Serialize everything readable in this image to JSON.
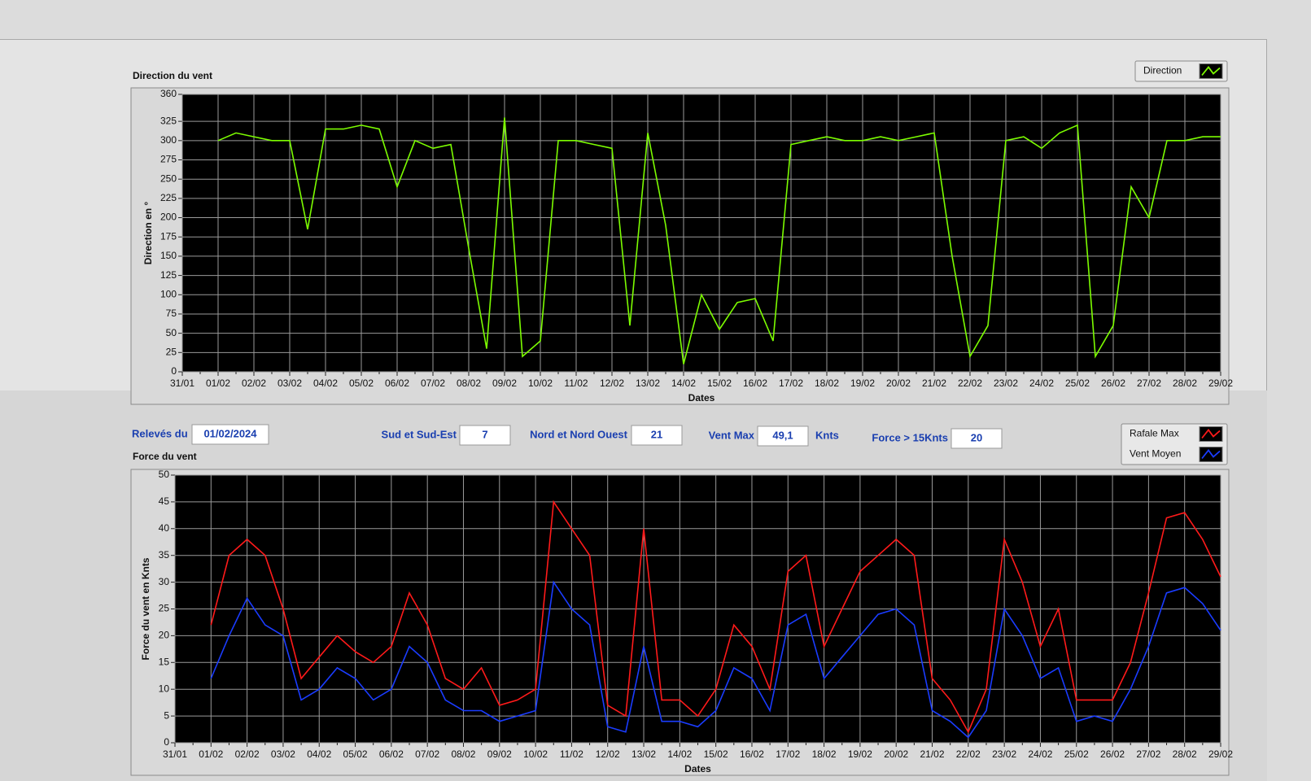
{
  "controls": {
    "releves": {
      "label": "Relevés du",
      "value": "01/02/2024"
    },
    "sud_sud_est": {
      "label": "Sud et Sud-Est",
      "value": "7"
    },
    "nord_nord_ouest": {
      "label": "Nord et Nord Ouest",
      "value": "21"
    },
    "vent_max": {
      "label": "Vent Max",
      "value": "49,1",
      "unit": "Knts"
    },
    "force_15": {
      "label": "Force > 15Knts",
      "value": "20"
    }
  },
  "chart_data": [
    {
      "type": "line",
      "title": "Direction du vent",
      "xlabel": "Dates",
      "ylabel": "Direction en °",
      "categories": [
        "31/01",
        null,
        "01/02",
        null,
        "02/02",
        null,
        "03/02",
        null,
        "04/02",
        null,
        "05/02",
        null,
        "06/02",
        null,
        "07/02",
        null,
        "08/02",
        null,
        "09/02",
        null,
        "10/02",
        null,
        "11/02",
        null,
        "12/02",
        null,
        "13/02",
        null,
        "14/02",
        null,
        "15/02",
        null,
        "16/02",
        null,
        "17/02",
        null,
        "18/02",
        null,
        "19/02",
        null,
        "20/02",
        null,
        "21/02",
        null,
        "22/02",
        null,
        "23/02",
        null,
        "24/02",
        null,
        "25/02",
        null,
        "26/02",
        null,
        "27/02",
        null,
        "28/02",
        null,
        "29/02"
      ],
      "series": [
        {
          "name": "Direction",
          "color": "#7cfc00",
          "values": [
            null,
            null,
            300,
            310,
            305,
            300,
            300,
            185,
            315,
            315,
            320,
            315,
            240,
            300,
            290,
            295,
            160,
            30,
            330,
            20,
            40,
            300,
            300,
            295,
            290,
            60,
            310,
            190,
            10,
            100,
            55,
            90,
            95,
            40,
            295,
            300,
            305,
            300,
            300,
            305,
            300,
            305,
            310,
            150,
            20,
            60,
            300,
            305,
            290,
            310,
            320,
            20,
            60,
            240,
            200,
            300,
            300,
            305,
            305
          ]
        }
      ],
      "ylim": [
        0,
        360
      ],
      "yticks": [
        0,
        25,
        50,
        75,
        100,
        125,
        150,
        175,
        200,
        225,
        250,
        275,
        300,
        325,
        360
      ],
      "grid": true,
      "legend": "top-right"
    },
    {
      "type": "line",
      "title": "Force du vent",
      "xlabel": "Dates",
      "ylabel": "Force du vent en Knts",
      "categories": [
        "31/01",
        null,
        "01/02",
        null,
        "02/02",
        null,
        "03/02",
        null,
        "04/02",
        null,
        "05/02",
        null,
        "06/02",
        null,
        "07/02",
        null,
        "08/02",
        null,
        "09/02",
        null,
        "10/02",
        null,
        "11/02",
        null,
        "12/02",
        null,
        "13/02",
        null,
        "14/02",
        null,
        "15/02",
        null,
        "16/02",
        null,
        "17/02",
        null,
        "18/02",
        null,
        "19/02",
        null,
        "20/02",
        null,
        "21/02",
        null,
        "22/02",
        null,
        "23/02",
        null,
        "24/02",
        null,
        "25/02",
        null,
        "26/02",
        null,
        "27/02",
        null,
        "28/02",
        null,
        "29/02"
      ],
      "series": [
        {
          "name": "Rafale Max",
          "color": "#ff1a1a",
          "values": [
            null,
            null,
            22,
            35,
            38,
            35,
            25,
            12,
            16,
            20,
            17,
            15,
            18,
            28,
            22,
            12,
            10,
            14,
            7,
            8,
            10,
            45,
            40,
            35,
            7,
            5,
            40,
            8,
            8,
            5,
            10,
            22,
            18,
            10,
            32,
            35,
            18,
            25,
            32,
            35,
            38,
            35,
            12,
            8,
            2,
            10,
            38,
            30,
            18,
            25,
            8,
            8,
            8,
            15,
            28,
            42,
            43,
            38,
            31
          ]
        },
        {
          "name": "Vent Moyen",
          "color": "#1a3cff",
          "values": [
            null,
            null,
            12,
            20,
            27,
            22,
            20,
            8,
            10,
            14,
            12,
            8,
            10,
            18,
            15,
            8,
            6,
            6,
            4,
            5,
            6,
            30,
            25,
            22,
            3,
            2,
            18,
            4,
            4,
            3,
            6,
            14,
            12,
            6,
            22,
            24,
            12,
            16,
            20,
            24,
            25,
            22,
            6,
            4,
            1,
            6,
            25,
            20,
            12,
            14,
            4,
            5,
            4,
            10,
            18,
            28,
            29,
            26,
            21
          ]
        }
      ],
      "ylim": [
        0,
        50
      ],
      "yticks": [
        0,
        5,
        10,
        15,
        20,
        25,
        30,
        35,
        40,
        45,
        50
      ],
      "grid": true,
      "legend": "top-right"
    }
  ]
}
